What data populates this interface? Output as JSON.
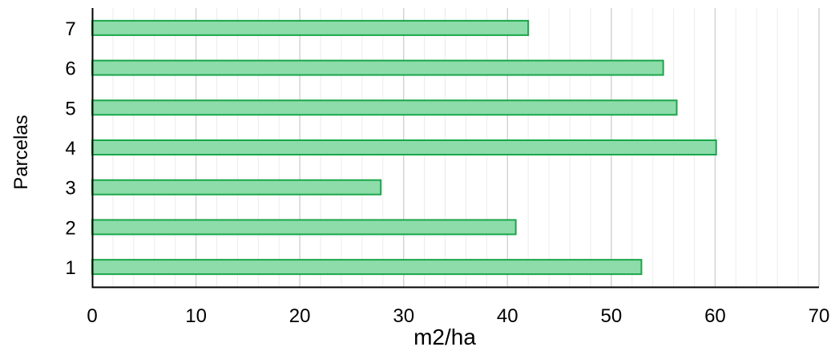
{
  "chart_data": {
    "type": "bar",
    "orientation": "horizontal",
    "categories": [
      "1",
      "2",
      "3",
      "4",
      "5",
      "6",
      "7"
    ],
    "values": [
      52.9,
      40.8,
      27.8,
      60.1,
      56.3,
      55.0,
      42.0
    ],
    "xlabel": "m2/ha",
    "ylabel": "Parcelas",
    "xlim": [
      0,
      70
    ],
    "x_ticks": [
      "0",
      "10",
      "20",
      "30",
      "40",
      "50",
      "60",
      "70"
    ],
    "grid": "vertical major and minor",
    "legend": "none",
    "colors": {
      "bar_fill": "#8ddcaa",
      "bar_stroke": "#1aa64a",
      "major_grid": "#d4d4d4",
      "minor_grid": "#ececec",
      "axis": "#000000"
    }
  }
}
